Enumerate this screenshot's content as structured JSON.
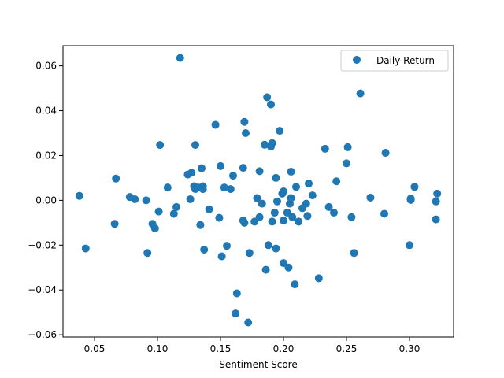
{
  "chart_data": {
    "type": "scatter",
    "title": "",
    "xlabel": "Sentiment Score",
    "ylabel": "",
    "xlim": [
      0.025,
      0.335
    ],
    "ylim": [
      -0.061,
      0.069
    ],
    "xticks": [
      0.05,
      0.1,
      0.15,
      0.2,
      0.25,
      0.3
    ],
    "xtick_labels": [
      "0.05",
      "0.10",
      "0.15",
      "0.20",
      "0.25",
      "0.30"
    ],
    "yticks": [
      -0.06,
      -0.04,
      -0.02,
      0.0,
      0.02,
      0.04,
      0.06
    ],
    "ytick_labels": [
      "−0.06",
      "−0.04",
      "−0.02",
      "0.00",
      "0.02",
      "0.04",
      "0.06"
    ],
    "grid": false,
    "legend_position": "top-right",
    "marker_color": "#1f77b4",
    "series": [
      {
        "name": "Daily Return",
        "points": [
          [
            0.038,
            0.002
          ],
          [
            0.043,
            -0.0215
          ],
          [
            0.066,
            -0.0105
          ],
          [
            0.067,
            0.0097
          ],
          [
            0.078,
            0.0015
          ],
          [
            0.082,
            0.0005
          ],
          [
            0.091,
            0.0
          ],
          [
            0.092,
            -0.0235
          ],
          [
            0.096,
            -0.0105
          ],
          [
            0.098,
            -0.0125
          ],
          [
            0.101,
            -0.005
          ],
          [
            0.102,
            0.0247
          ],
          [
            0.108,
            0.0057
          ],
          [
            0.113,
            -0.006
          ],
          [
            0.115,
            -0.003
          ],
          [
            0.118,
            0.0635
          ],
          [
            0.124,
            0.0115
          ],
          [
            0.126,
            0.0005
          ],
          [
            0.127,
            0.0123
          ],
          [
            0.129,
            0.0063
          ],
          [
            0.13,
            0.0247
          ],
          [
            0.13,
            0.005
          ],
          [
            0.132,
            0.0057
          ],
          [
            0.134,
            -0.011
          ],
          [
            0.135,
            0.0143
          ],
          [
            0.136,
            0.0063
          ],
          [
            0.136,
            0.005
          ],
          [
            0.137,
            -0.022
          ],
          [
            0.141,
            -0.004
          ],
          [
            0.146,
            0.0337
          ],
          [
            0.149,
            -0.0078
          ],
          [
            0.15,
            0.0153
          ],
          [
            0.151,
            -0.025
          ],
          [
            0.153,
            0.0057
          ],
          [
            0.155,
            -0.0203
          ],
          [
            0.158,
            0.005
          ],
          [
            0.16,
            0.011
          ],
          [
            0.162,
            -0.0505
          ],
          [
            0.163,
            -0.0415
          ],
          [
            0.168,
            0.0145
          ],
          [
            0.168,
            -0.009
          ],
          [
            0.169,
            -0.01
          ],
          [
            0.169,
            0.035
          ],
          [
            0.17,
            0.03
          ],
          [
            0.172,
            -0.0545
          ],
          [
            0.173,
            -0.0235
          ],
          [
            0.177,
            -0.0095
          ],
          [
            0.179,
            0.001
          ],
          [
            0.181,
            0.013
          ],
          [
            0.181,
            -0.0075
          ],
          [
            0.183,
            -0.0015
          ],
          [
            0.185,
            0.0248
          ],
          [
            0.186,
            -0.031
          ],
          [
            0.187,
            0.046
          ],
          [
            0.188,
            -0.02
          ],
          [
            0.19,
            0.0428
          ],
          [
            0.19,
            0.024
          ],
          [
            0.191,
            0.0255
          ],
          [
            0.191,
            -0.0095
          ],
          [
            0.193,
            -0.0055
          ],
          [
            0.194,
            -0.0215
          ],
          [
            0.194,
            0.01
          ],
          [
            0.195,
            -0.0005
          ],
          [
            0.197,
            0.031
          ],
          [
            0.199,
            0.003
          ],
          [
            0.2,
            0.004
          ],
          [
            0.2,
            -0.009
          ],
          [
            0.2,
            -0.028
          ],
          [
            0.203,
            -0.0055
          ],
          [
            0.204,
            -0.03
          ],
          [
            0.205,
            -0.0015
          ],
          [
            0.206,
            0.0128
          ],
          [
            0.206,
            0.001
          ],
          [
            0.207,
            -0.0075
          ],
          [
            0.209,
            -0.0375
          ],
          [
            0.21,
            0.006
          ],
          [
            0.212,
            -0.0095
          ],
          [
            0.215,
            -0.0035
          ],
          [
            0.218,
            -0.0015
          ],
          [
            0.219,
            -0.007
          ],
          [
            0.22,
            0.0075
          ],
          [
            0.223,
            0.0022
          ],
          [
            0.228,
            -0.0348
          ],
          [
            0.233,
            0.023
          ],
          [
            0.236,
            -0.003
          ],
          [
            0.24,
            -0.0055
          ],
          [
            0.242,
            0.0085
          ],
          [
            0.25,
            0.0165
          ],
          [
            0.251,
            0.0237
          ],
          [
            0.254,
            -0.0075
          ],
          [
            0.256,
            -0.0235
          ],
          [
            0.261,
            0.0477
          ],
          [
            0.269,
            0.0012
          ],
          [
            0.28,
            -0.006
          ],
          [
            0.281,
            0.0212
          ],
          [
            0.3,
            -0.02
          ],
          [
            0.301,
            0.0002
          ],
          [
            0.301,
            0.0008
          ],
          [
            0.304,
            0.006
          ],
          [
            0.321,
            -0.0005
          ],
          [
            0.321,
            -0.0085
          ],
          [
            0.322,
            0.003
          ]
        ]
      }
    ]
  }
}
